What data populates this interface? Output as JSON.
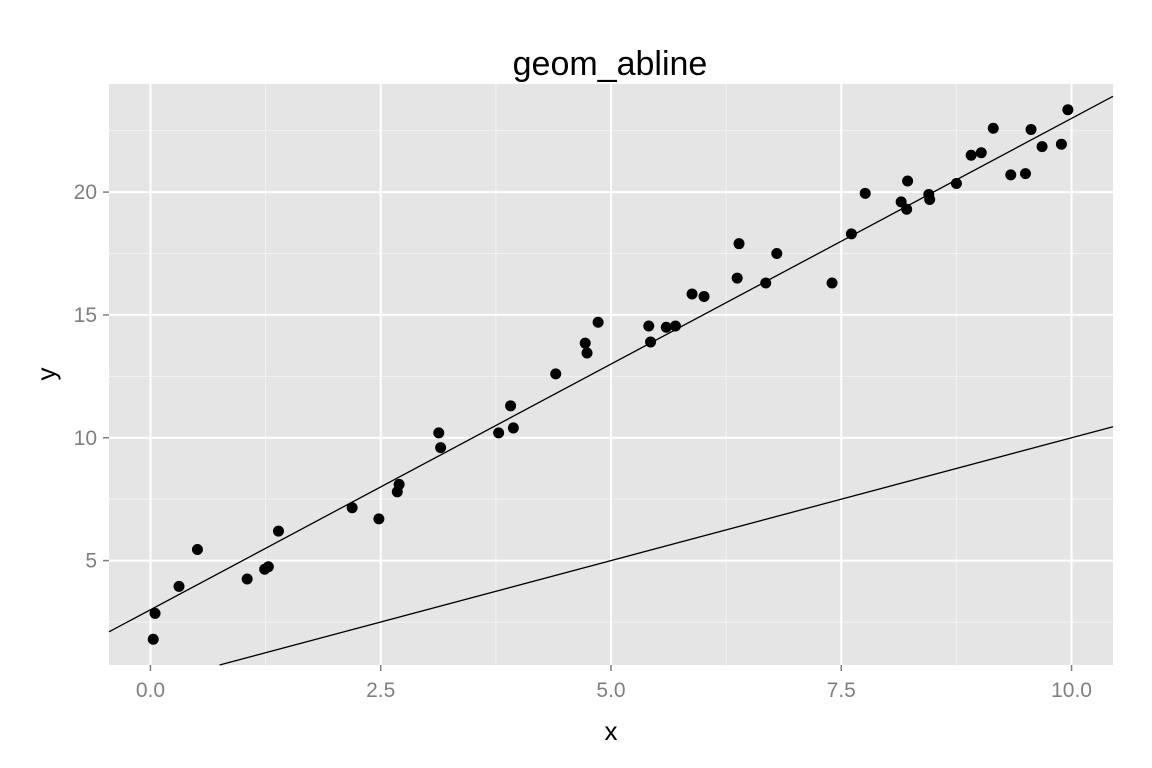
{
  "chart_data": {
    "type": "scatter",
    "title": "geom_abline",
    "xlabel": "x",
    "ylabel": "y",
    "xlim": [
      -0.45,
      10.45
    ],
    "ylim": [
      0.75,
      24.4
    ],
    "x_ticks": [
      0.0,
      2.5,
      5.0,
      7.5,
      10.0
    ],
    "x_tick_labels": [
      "0.0",
      "2.5",
      "5.0",
      "7.5",
      "10.0"
    ],
    "y_ticks": [
      5,
      10,
      15,
      20
    ],
    "y_tick_labels": [
      "5",
      "10",
      "15",
      "20"
    ],
    "grid": true,
    "legend": "none",
    "colors": {
      "panel": "#e5e5e5",
      "grid": "#ffffff",
      "points": "#000000",
      "tick_labels": "#7f7f7f"
    },
    "series": [
      {
        "type": "scatter",
        "x": [
          0.03,
          0.05,
          0.31,
          0.51,
          1.05,
          1.24,
          1.28,
          1.39,
          2.19,
          2.48,
          2.68,
          2.7,
          3.13,
          3.15,
          3.78,
          3.91,
          3.94,
          4.4,
          4.72,
          4.74,
          4.86,
          5.41,
          5.43,
          5.6,
          5.7,
          5.88,
          6.01,
          6.37,
          6.39,
          6.68,
          6.8,
          7.4,
          7.61,
          7.76,
          8.15,
          8.21,
          8.22,
          8.45,
          8.46,
          8.75,
          8.91,
          9.02,
          9.15,
          9.34,
          9.5,
          9.56,
          9.68,
          9.89,
          9.96
        ],
        "y": [
          1.8,
          2.85,
          3.95,
          5.45,
          4.25,
          4.65,
          4.75,
          6.2,
          7.15,
          6.7,
          7.8,
          8.1,
          10.2,
          9.6,
          10.2,
          11.3,
          10.4,
          12.6,
          13.85,
          13.45,
          14.7,
          14.55,
          13.9,
          14.5,
          14.55,
          15.85,
          15.75,
          16.5,
          17.9,
          16.3,
          17.5,
          16.3,
          18.3,
          19.95,
          19.6,
          19.3,
          20.45,
          19.9,
          19.7,
          20.35,
          21.5,
          21.6,
          22.6,
          20.7,
          20.75,
          22.55,
          21.85,
          21.95,
          23.35
        ]
      }
    ],
    "lines": [
      {
        "type": "abline",
        "intercept": 3.0,
        "slope": 2.0
      },
      {
        "type": "abline",
        "intercept": 0.0,
        "slope": 1.0
      }
    ]
  }
}
